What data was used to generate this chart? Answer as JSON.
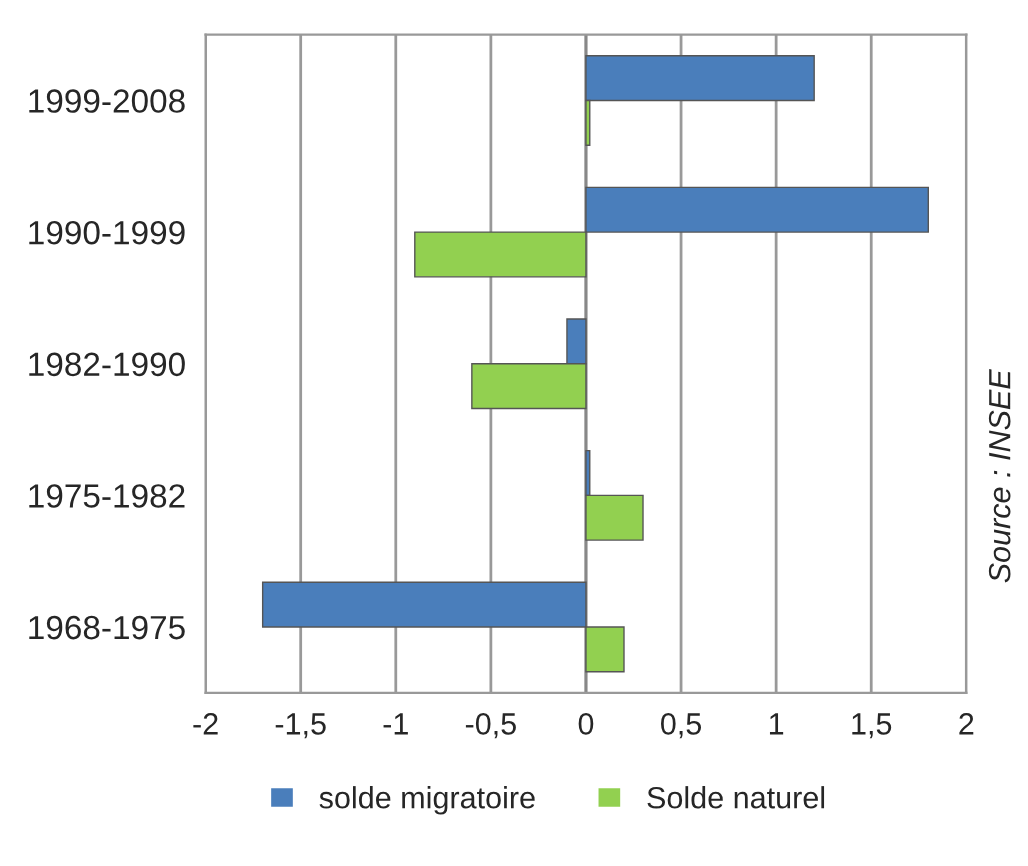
{
  "chart_data": {
    "type": "bar",
    "orientation": "horizontal",
    "categories": [
      "1999-2008",
      "1990-1999",
      "1982-1990",
      "1975-1982",
      "1968-1975"
    ],
    "series": [
      {
        "name": "solde migratoire",
        "color": "#4a7ebb",
        "values": [
          1.2,
          1.8,
          -0.1,
          0.02,
          -1.7
        ]
      },
      {
        "name": "Solde naturel",
        "color": "#92d050",
        "values": [
          0.02,
          -0.9,
          -0.6,
          0.3,
          0.2
        ]
      }
    ],
    "xlim": [
      -2,
      2
    ],
    "xticks": [
      {
        "value": -2,
        "label": "-2"
      },
      {
        "value": -1.5,
        "label": "-1,5"
      },
      {
        "value": -1,
        "label": "-1"
      },
      {
        "value": -0.5,
        "label": "-0,5"
      },
      {
        "value": 0,
        "label": "0"
      },
      {
        "value": 0.5,
        "label": "0,5"
      },
      {
        "value": 1,
        "label": "1"
      },
      {
        "value": 1.5,
        "label": "1,5"
      },
      {
        "value": 2,
        "label": "2"
      }
    ],
    "grid": "x",
    "legend": "bottom",
    "annotations": [
      "Source : INSEE"
    ]
  }
}
